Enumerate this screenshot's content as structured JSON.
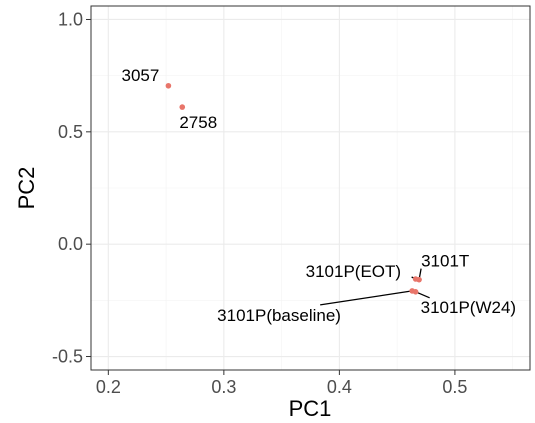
{
  "chart_data": {
    "type": "scatter",
    "xlabel": "PC1",
    "ylabel": "PC2",
    "xlim": [
      0.185,
      0.565
    ],
    "ylim": [
      -0.56,
      1.06
    ],
    "x_ticks": [
      0.2,
      0.3,
      0.4,
      0.5
    ],
    "x_tick_labels": [
      "0.2",
      "0.3",
      "0.4",
      "0.5"
    ],
    "y_ticks": [
      -0.5,
      0.0,
      0.5,
      1.0
    ],
    "y_tick_labels": [
      "-0.5",
      "0.0",
      "0.5",
      "1.0"
    ],
    "grid": true,
    "point_color": "#e8756a",
    "points": [
      {
        "label": "3057",
        "x": 0.252,
        "y": 0.705
      },
      {
        "label": "2758",
        "x": 0.264,
        "y": 0.61
      },
      {
        "label": "3101P(EOT)",
        "x": 0.466,
        "y": -0.155
      },
      {
        "label": "3101T",
        "x": 0.469,
        "y": -0.158
      },
      {
        "label": "3101P(baseline)",
        "x": 0.463,
        "y": -0.208
      },
      {
        "label": "3101P(W24)",
        "x": 0.466,
        "y": -0.212
      }
    ]
  }
}
